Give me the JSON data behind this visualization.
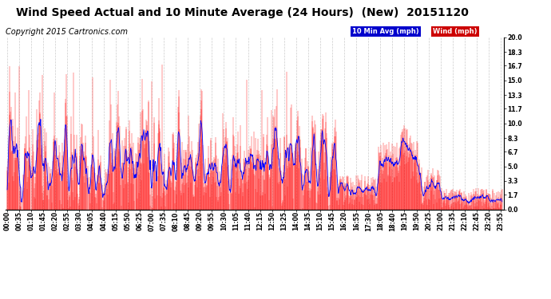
{
  "title": "Wind Speed Actual and 10 Minute Average (24 Hours)  (New)  20151120",
  "copyright": "Copyright 2015 Cartronics.com",
  "ylabel_right_values": [
    0.0,
    1.7,
    3.3,
    5.0,
    6.7,
    8.3,
    10.0,
    11.7,
    13.3,
    15.0,
    16.7,
    18.3,
    20.0
  ],
  "ymax": 20.0,
  "ymin": 0.0,
  "bg_color": "#ffffff",
  "plot_bg_color": "#ffffff",
  "grid_color": "#aaaaaa",
  "wind_color": "#ff0000",
  "avg_color": "#0000ff",
  "legend_label_avg": "10 Min Avg (mph)",
  "legend_label_wind": "Wind (mph)",
  "legend_color_avg": "#0000cc",
  "legend_color_wind": "#cc0000",
  "title_fontsize": 10,
  "copyright_fontsize": 7,
  "tick_fontsize": 5.5,
  "num_points": 1440,
  "tick_interval_minutes": 35
}
